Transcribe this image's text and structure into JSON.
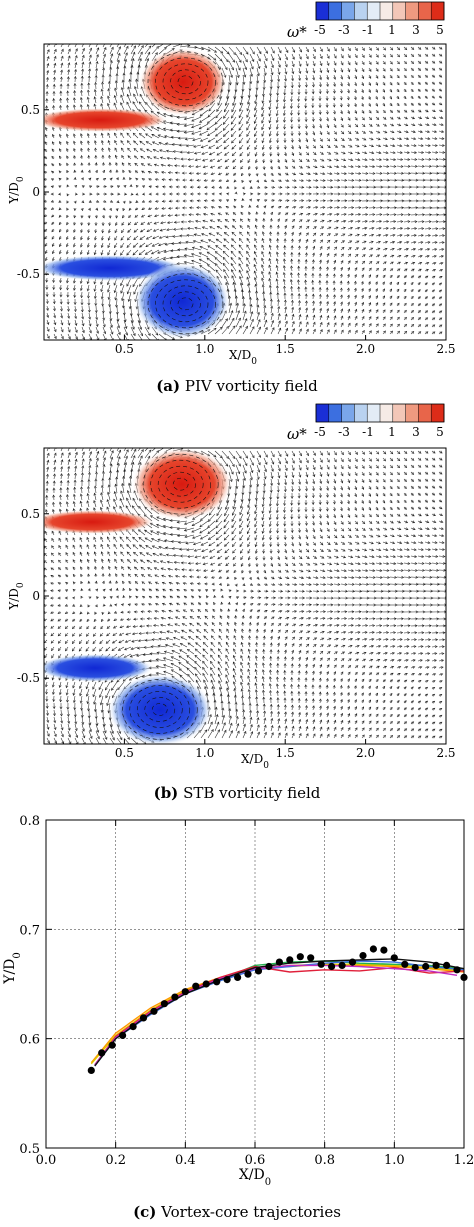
{
  "colorbar": {
    "label": "ω*",
    "ticks": [
      "-5",
      "-3",
      "-1",
      "1",
      "3",
      "5"
    ],
    "colors": [
      "#1a2fd6",
      "#3c6fe0",
      "#7aa6ea",
      "#b9d2f0",
      "#e3ecf6",
      "#f6ebe6",
      "#f3c7b8",
      "#ef9a80",
      "#e8654a",
      "#dd2c18"
    ]
  },
  "captions": {
    "a_label": "(a)",
    "a_text": "PIV vorticity field",
    "b_label": "(b)",
    "b_text": "STB vorticity field",
    "c_label": "(c)",
    "c_text": "Vortex-core trajectories"
  },
  "chart_data": [
    {
      "type": "heatmap",
      "panel": "a",
      "xlabel": "X/D0",
      "ylabel": "Y/D0",
      "xlim": [
        0.0,
        2.5
      ],
      "ylim": [
        -0.9,
        0.9
      ],
      "x_ticks": [
        "0.5",
        "1.0",
        "1.5",
        "2.0",
        "2.5"
      ],
      "y_ticks": [
        "-0.5",
        "0",
        "0.5"
      ],
      "vortices": [
        {
          "sign": "positive",
          "x": 0.88,
          "y": 0.67
        },
        {
          "sign": "negative",
          "x": 0.88,
          "y": -0.68
        }
      ],
      "shear_layers": [
        {
          "sign": "positive",
          "y": 0.44,
          "x_end": 0.6
        },
        {
          "sign": "negative",
          "y": -0.48,
          "x_end": 0.7
        }
      ]
    },
    {
      "type": "heatmap",
      "panel": "b",
      "xlabel": "X/D0",
      "ylabel": "Y/D0",
      "xlim": [
        0.0,
        2.5
      ],
      "ylim": [
        -0.9,
        0.9
      ],
      "x_ticks": [
        "0.5",
        "1.0",
        "1.5",
        "2.0",
        "2.5"
      ],
      "y_ticks": [
        "-0.5",
        "0",
        "0.5"
      ],
      "vortices": [
        {
          "sign": "positive",
          "x": 0.85,
          "y": 0.68
        },
        {
          "sign": "negative",
          "x": 0.72,
          "y": -0.69
        }
      ],
      "shear_layers": [
        {
          "sign": "positive",
          "y": 0.44,
          "x_end": 0.55
        },
        {
          "sign": "negative",
          "y": -0.46,
          "x_end": 0.55
        }
      ]
    },
    {
      "type": "line",
      "panel": "c",
      "xlabel": "X/D0",
      "ylabel": "Y/D0",
      "xlim": [
        0.0,
        1.2
      ],
      "ylim": [
        0.5,
        0.8
      ],
      "x_ticks": [
        "0.0",
        "0.2",
        "0.4",
        "0.6",
        "0.8",
        "1.0",
        "1.2"
      ],
      "y_ticks": [
        "0.5",
        "0.6",
        "0.7",
        "0.8"
      ],
      "grid": true,
      "series": [
        {
          "color": "#ff9900",
          "x": [
            0.13,
            0.2,
            0.3,
            0.4,
            0.5,
            0.6,
            0.7,
            0.8,
            0.9,
            1.0,
            1.1,
            1.2
          ],
          "y": [
            0.578,
            0.605,
            0.628,
            0.645,
            0.656,
            0.665,
            0.666,
            0.668,
            0.667,
            0.666,
            0.664,
            0.661
          ]
        },
        {
          "color": "#e2c500",
          "x": [
            0.13,
            0.2,
            0.3,
            0.4,
            0.5,
            0.6,
            0.7,
            0.8,
            0.9,
            1.0,
            1.1,
            1.2
          ],
          "y": [
            0.577,
            0.603,
            0.626,
            0.644,
            0.655,
            0.664,
            0.667,
            0.668,
            0.668,
            0.667,
            0.665,
            0.662
          ]
        },
        {
          "color": "#22b14c",
          "x": [
            0.14,
            0.2,
            0.3,
            0.4,
            0.5,
            0.6,
            0.7,
            0.8,
            0.9,
            1.0,
            1.1,
            1.2
          ],
          "y": [
            0.576,
            0.601,
            0.624,
            0.642,
            0.654,
            0.667,
            0.67,
            0.671,
            0.669,
            0.668,
            0.667,
            0.664
          ]
        },
        {
          "color": "#3a6fe0",
          "x": [
            0.14,
            0.2,
            0.3,
            0.4,
            0.5,
            0.6,
            0.7,
            0.8,
            0.9,
            1.0,
            1.1,
            1.2
          ],
          "y": [
            0.575,
            0.6,
            0.622,
            0.641,
            0.653,
            0.663,
            0.666,
            0.669,
            0.671,
            0.67,
            0.666,
            0.663
          ]
        },
        {
          "color": "#e0203a",
          "x": [
            0.14,
            0.2,
            0.3,
            0.4,
            0.5,
            0.6,
            0.7,
            0.8,
            0.9,
            1.0,
            1.1,
            1.2
          ],
          "y": [
            0.576,
            0.602,
            0.625,
            0.643,
            0.656,
            0.666,
            0.661,
            0.663,
            0.662,
            0.665,
            0.66,
            0.662
          ]
        },
        {
          "color": "#c02cc0",
          "x": [
            0.14,
            0.2,
            0.3,
            0.4,
            0.5,
            0.6,
            0.7,
            0.8,
            0.9,
            1.0,
            1.1,
            1.18
          ],
          "y": [
            0.576,
            0.601,
            0.624,
            0.642,
            0.655,
            0.664,
            0.667,
            0.667,
            0.666,
            0.664,
            0.662,
            0.658
          ]
        },
        {
          "color": "#111111",
          "x": [
            0.14,
            0.2,
            0.3,
            0.4,
            0.5,
            0.6,
            0.7,
            0.8,
            0.9,
            1.0,
            1.1,
            1.2
          ],
          "y": [
            0.575,
            0.6,
            0.623,
            0.641,
            0.654,
            0.665,
            0.669,
            0.671,
            0.672,
            0.673,
            0.67,
            0.664
          ]
        }
      ],
      "scatter": {
        "color": "#000000",
        "x": [
          0.13,
          0.16,
          0.19,
          0.22,
          0.25,
          0.28,
          0.31,
          0.34,
          0.37,
          0.4,
          0.43,
          0.46,
          0.49,
          0.52,
          0.55,
          0.58,
          0.61,
          0.64,
          0.67,
          0.7,
          0.73,
          0.76,
          0.79,
          0.82,
          0.85,
          0.88,
          0.91,
          0.94,
          0.97,
          1.0,
          1.03,
          1.06,
          1.09,
          1.12,
          1.15,
          1.18,
          1.2
        ],
        "y": [
          0.571,
          0.587,
          0.594,
          0.603,
          0.611,
          0.619,
          0.625,
          0.632,
          0.638,
          0.643,
          0.648,
          0.65,
          0.652,
          0.654,
          0.656,
          0.659,
          0.662,
          0.666,
          0.67,
          0.672,
          0.675,
          0.674,
          0.668,
          0.666,
          0.667,
          0.67,
          0.676,
          0.682,
          0.681,
          0.674,
          0.668,
          0.665,
          0.666,
          0.667,
          0.667,
          0.663,
          0.656
        ]
      }
    }
  ]
}
